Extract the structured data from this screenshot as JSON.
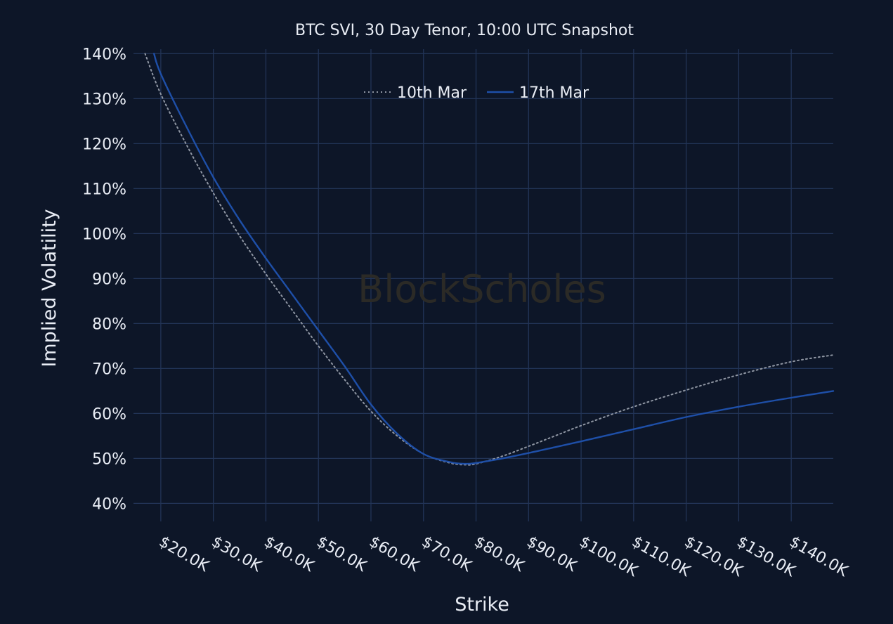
{
  "watermark": "BlockScholes",
  "chart_data": {
    "type": "line",
    "title": "BTC SVI, 30 Day Tenor, 10:00 UTC Snapshot",
    "xlabel": "Strike",
    "ylabel": "Implied Volatility",
    "xlim": [
      14800,
      148000
    ],
    "ylim": [
      36,
      141
    ],
    "x_ticks": [
      20000,
      30000,
      40000,
      50000,
      60000,
      70000,
      80000,
      90000,
      100000,
      110000,
      120000,
      130000,
      140000
    ],
    "x_tick_labels": [
      "$20.0K",
      "$30.0K",
      "$40.0K",
      "$50.0K",
      "$60.0K",
      "$70.0K",
      "$80.0K",
      "$90.0K",
      "$100.0K",
      "$110.0K",
      "$120.0K",
      "$130.0K",
      "$140.0K"
    ],
    "y_ticks": [
      40,
      50,
      60,
      70,
      80,
      90,
      100,
      110,
      120,
      130,
      140
    ],
    "y_tick_labels": [
      "40%",
      "50%",
      "60%",
      "70%",
      "80%",
      "90%",
      "100%",
      "110%",
      "120%",
      "130%",
      "140%"
    ],
    "grid": true,
    "legend_position": "top-center",
    "series": [
      {
        "name": "10th Mar",
        "color": "#8f96a3",
        "style": "dotted",
        "x": [
          17000,
          20000,
          25000,
          30000,
          35000,
          40000,
          45000,
          50000,
          55000,
          60000,
          65000,
          70000,
          75000,
          78000,
          80000,
          85000,
          90000,
          95000,
          100000,
          110000,
          120000,
          130000,
          140000,
          148000
        ],
        "y": [
          140,
          131,
          119.5,
          109,
          99.5,
          91,
          83,
          75,
          67.5,
          60.5,
          55,
          51,
          49,
          48.6,
          48.8,
          50.5,
          52.7,
          55,
          57.3,
          61.5,
          65.2,
          68.6,
          71.5,
          73
        ]
      },
      {
        "name": "17th Mar",
        "color": "#1e4fa8",
        "style": "solid",
        "x": [
          18700,
          20000,
          25000,
          30000,
          35000,
          40000,
          45000,
          50000,
          55000,
          60000,
          65000,
          70000,
          75000,
          78000,
          80000,
          85000,
          90000,
          95000,
          100000,
          110000,
          120000,
          130000,
          140000,
          148000
        ],
        "y": [
          140,
          135.5,
          123.5,
          112.5,
          103,
          94.5,
          86.5,
          78.5,
          70.5,
          62,
          55.5,
          51,
          49.2,
          48.8,
          49,
          50,
          51.2,
          52.5,
          53.8,
          56.5,
          59.2,
          61.5,
          63.5,
          65
        ]
      }
    ]
  }
}
